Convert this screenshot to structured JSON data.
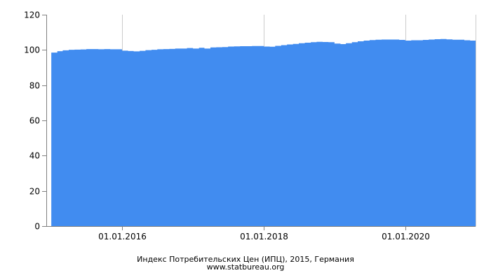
{
  "chart_data": {
    "type": "area",
    "title": "Индекс Потребительских Цен (ИПЦ), 2015, Германия",
    "source": "www.statbureau.org",
    "xlabel": "",
    "ylabel": "",
    "ylim": [
      0,
      120
    ],
    "yticks": [
      0,
      20,
      40,
      60,
      80,
      100,
      120
    ],
    "xticks": [
      "01.01.2016",
      "01.01.2018",
      "01.01.2020"
    ],
    "grid": true,
    "color": "#418cf0",
    "series": [
      {
        "x": [
          "2015-01",
          "2015-02",
          "2015-03",
          "2015-04",
          "2015-05",
          "2015-06",
          "2015-07",
          "2015-08",
          "2015-09",
          "2015-10",
          "2015-11",
          "2015-12",
          "2016-01",
          "2016-02",
          "2016-03",
          "2016-04",
          "2016-05",
          "2016-06",
          "2016-07",
          "2016-08",
          "2016-09",
          "2016-10",
          "2016-11",
          "2016-12",
          "2017-01",
          "2017-02",
          "2017-03",
          "2017-04",
          "2017-05",
          "2017-06",
          "2017-07",
          "2017-08",
          "2017-09",
          "2017-10",
          "2017-11",
          "2017-12",
          "2018-01",
          "2018-02",
          "2018-03",
          "2018-04",
          "2018-05",
          "2018-06",
          "2018-07",
          "2018-08",
          "2018-09",
          "2018-10",
          "2018-11",
          "2018-12",
          "2019-01",
          "2019-02",
          "2019-03",
          "2019-04",
          "2019-05",
          "2019-06",
          "2019-07",
          "2019-08",
          "2019-09",
          "2019-10",
          "2019-11",
          "2019-12",
          "2020-01",
          "2020-02",
          "2020-03",
          "2020-04",
          "2020-05",
          "2020-06",
          "2020-07",
          "2020-08",
          "2020-09",
          "2020-10",
          "2020-11",
          "2020-12"
        ],
        "values": [
          98.5,
          99.3,
          99.8,
          100.1,
          100.2,
          100.3,
          100.5,
          100.5,
          100.4,
          100.5,
          100.4,
          100.4,
          99.6,
          99.4,
          99.2,
          99.5,
          99.9,
          100.1,
          100.4,
          100.5,
          100.6,
          100.8,
          100.8,
          101.1,
          100.8,
          101.2,
          100.8,
          101.4,
          101.5,
          101.6,
          101.9,
          102.0,
          102.1,
          102.1,
          102.2,
          102.2,
          101.9,
          101.8,
          102.3,
          102.7,
          103.1,
          103.4,
          103.8,
          104.1,
          104.4,
          104.6,
          104.5,
          104.4,
          103.6,
          103.3,
          103.8,
          104.4,
          104.9,
          105.3,
          105.6,
          105.8,
          105.9,
          105.9,
          105.9,
          105.7,
          105.3,
          105.5,
          105.5,
          105.7,
          105.9,
          106.1,
          106.2,
          106.0,
          105.8,
          105.8,
          105.5,
          105.3
        ]
      }
    ]
  }
}
